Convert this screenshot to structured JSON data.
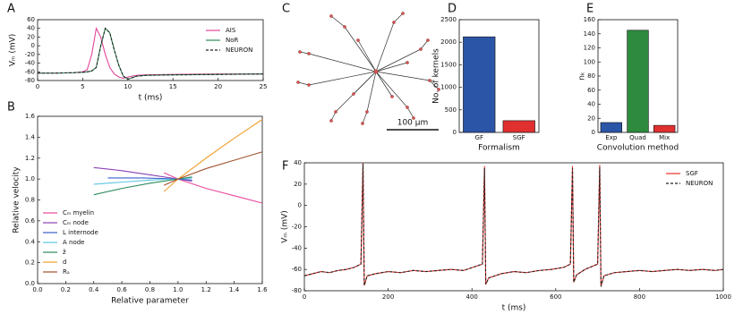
{
  "chart_data": [
    {
      "type": "line",
      "label": "A",
      "xlabel": "t (ms)",
      "ylabel": "Vₘ (mV)",
      "x": [
        0,
        2,
        4,
        5,
        5.5,
        6,
        6.5,
        7,
        7.5,
        8,
        8.5,
        9,
        9.5,
        10,
        11,
        12,
        15,
        20,
        25
      ],
      "xlim": [
        0,
        25
      ],
      "xticks": [
        0,
        5,
        10,
        15,
        20,
        25
      ],
      "ylim": [
        -80,
        60
      ],
      "yticks": [
        -80,
        -60,
        -40,
        -20,
        0,
        20,
        40,
        60
      ],
      "legend": "upper right",
      "series": [
        {
          "name": "AIS",
          "color": "#e0449a",
          "linestyle": "solid",
          "values": [
            -63,
            -63,
            -62,
            -60,
            -55,
            -20,
            40,
            20,
            -20,
            -50,
            -65,
            -72,
            -75,
            -72,
            -68,
            -67,
            -66,
            -65,
            -65
          ]
        },
        {
          "name": "NoR",
          "color": "#2e8b57",
          "linestyle": "solid",
          "values": [
            -63,
            -63,
            -62,
            -61,
            -60,
            -58,
            -50,
            0,
            40,
            30,
            -10,
            -45,
            -70,
            -77,
            -70,
            -68,
            -67,
            -66,
            -65
          ]
        },
        {
          "name": "NEURON",
          "color": "#222222",
          "linestyle": "dashed",
          "values": [
            -63,
            -63,
            -62,
            -61,
            -60,
            -58,
            -50,
            0,
            40,
            30,
            -10,
            -45,
            -70,
            -77,
            -70,
            -68,
            -67,
            -66,
            -65
          ]
        }
      ]
    },
    {
      "type": "line",
      "label": "B",
      "xlabel": "Relative parameter",
      "ylabel": "Relative velocity",
      "xlim": [
        0,
        1.6
      ],
      "xticks": [
        {
          "value": 0,
          "label": "0.0"
        },
        0.2,
        0.4,
        0.6,
        0.8,
        {
          "value": 1,
          "label": "1.0"
        },
        1.2,
        1.4,
        1.6
      ],
      "ylim": [
        0,
        1.6
      ],
      "yticks": [
        {
          "value": 0,
          "label": "0.0"
        },
        0.2,
        0.4,
        0.6,
        0.8,
        {
          "value": 1,
          "label": "1.0"
        },
        1.2,
        1.4,
        1.6
      ],
      "legend": "lower left",
      "series": [
        {
          "name": "Cₘ myelin",
          "color": "#e8489b",
          "linestyle": "solid",
          "x": [
            0.9,
            1.0,
            1.2,
            1.4,
            1.6
          ],
          "values": [
            1.06,
            1.0,
            0.91,
            0.84,
            0.77
          ]
        },
        {
          "name": "Cₘ node",
          "color": "#8a3fb5",
          "linestyle": "solid",
          "x": [
            0.4,
            0.6,
            0.8,
            1.0,
            1.1
          ],
          "values": [
            1.11,
            1.08,
            1.04,
            1.0,
            0.98
          ]
        },
        {
          "name": "L internode",
          "color": "#3a5fc8",
          "linestyle": "solid",
          "x": [
            0.5,
            0.75,
            1.0,
            1.1
          ],
          "values": [
            1.01,
            1.01,
            1.0,
            0.99
          ]
        },
        {
          "name": "A node",
          "color": "#5bc5e0",
          "linestyle": "solid",
          "x": [
            0.4,
            0.6,
            0.8,
            1.0,
            1.1
          ],
          "values": [
            0.95,
            0.97,
            0.99,
            1.0,
            1.01
          ]
        },
        {
          "name": "z̃",
          "color": "#2d8a5e",
          "linestyle": "solid",
          "x": [
            0.4,
            0.6,
            0.8,
            1.0,
            1.1
          ],
          "values": [
            0.85,
            0.91,
            0.96,
            1.0,
            1.02
          ]
        },
        {
          "name": "d",
          "color": "#f0a030",
          "linestyle": "solid",
          "x": [
            0.9,
            1.0,
            1.2,
            1.4,
            1.6
          ],
          "values": [
            0.88,
            1.0,
            1.2,
            1.39,
            1.57
          ]
        },
        {
          "name": "Rₐ",
          "color": "#a0522d",
          "linestyle": "solid",
          "x": [
            0.9,
            1.0,
            1.2,
            1.4,
            1.6
          ],
          "values": [
            0.94,
            1.0,
            1.1,
            1.18,
            1.26
          ]
        }
      ]
    },
    {
      "type": "morphology",
      "label": "C",
      "scale_bar": "100 μm"
    },
    {
      "type": "bar",
      "label": "D",
      "xlabel": "Formalism",
      "ylabel": "No. of kernels",
      "categories": [
        "GF",
        "SGF"
      ],
      "values": [
        2120,
        260
      ],
      "colors": [
        "#2b55a6",
        "#e0302f"
      ],
      "ylim": [
        0,
        2500
      ],
      "yticks": [
        0,
        500,
        1000,
        1500,
        2000,
        2500
      ]
    },
    {
      "type": "bar",
      "label": "E",
      "xlabel": "Convolution method",
      "ylabel": "nₖ",
      "categories": [
        "Exp",
        "Quad",
        "Mix"
      ],
      "values": [
        14,
        145,
        10
      ],
      "colors": [
        "#2b55a6",
        "#2d8a3e",
        "#e0302f"
      ],
      "ylim": [
        0,
        160
      ],
      "yticks": [
        0,
        20,
        40,
        60,
        80,
        100,
        120,
        140,
        160
      ]
    },
    {
      "type": "line",
      "label": "F",
      "xlabel": "t (ms)",
      "ylabel": "Vₘ (mV)",
      "x": [
        0,
        20,
        40,
        60,
        80,
        100,
        120,
        135,
        140,
        143,
        150,
        170,
        200,
        230,
        260,
        290,
        320,
        350,
        380,
        410,
        425,
        430,
        433,
        440,
        470,
        500,
        530,
        560,
        590,
        620,
        635,
        640,
        643,
        650,
        670,
        700,
        705,
        708,
        715,
        740,
        770,
        800,
        830,
        860,
        890,
        920,
        950,
        980,
        1000
      ],
      "xlim": [
        0,
        1000
      ],
      "xticks": [
        0,
        200,
        400,
        600,
        800,
        1000
      ],
      "ylim": [
        -80,
        40
      ],
      "yticks": [
        -80,
        -60,
        -40,
        -20,
        0,
        20,
        40
      ],
      "legend": "upper right",
      "series": [
        {
          "name": "SGF",
          "color": "#e8302a",
          "linestyle": "solid",
          "values": [
            -66,
            -64,
            -62,
            -63,
            -61,
            -60,
            -58,
            -55,
            40,
            -75,
            -66,
            -64,
            -62,
            -63,
            -61,
            -62,
            -61,
            -60,
            -61,
            -57,
            -55,
            37,
            -74,
            -68,
            -64,
            -62,
            -63,
            -61,
            -60,
            -58,
            -55,
            37,
            -72,
            -65,
            -60,
            -55,
            38,
            -76,
            -66,
            -63,
            -62,
            -61,
            -62,
            -61,
            -60,
            -61,
            -60,
            -61,
            -60
          ]
        },
        {
          "name": "NEURON",
          "color": "#222222",
          "linestyle": "dashed",
          "values": [
            -66,
            -64,
            -62,
            -63,
            -61,
            -60,
            -58,
            -55,
            39,
            -75,
            -66,
            -64,
            -62,
            -63,
            -61,
            -62,
            -61,
            -60,
            -61,
            -57,
            -55,
            35,
            -74,
            -68,
            -64,
            -62,
            -63,
            -61,
            -60,
            -58,
            -55,
            35,
            -72,
            -65,
            -60,
            -55,
            36,
            -76,
            -66,
            -63,
            -62,
            -61,
            -62,
            -61,
            -60,
            -61,
            -60,
            -61,
            -60
          ]
        }
      ]
    }
  ]
}
